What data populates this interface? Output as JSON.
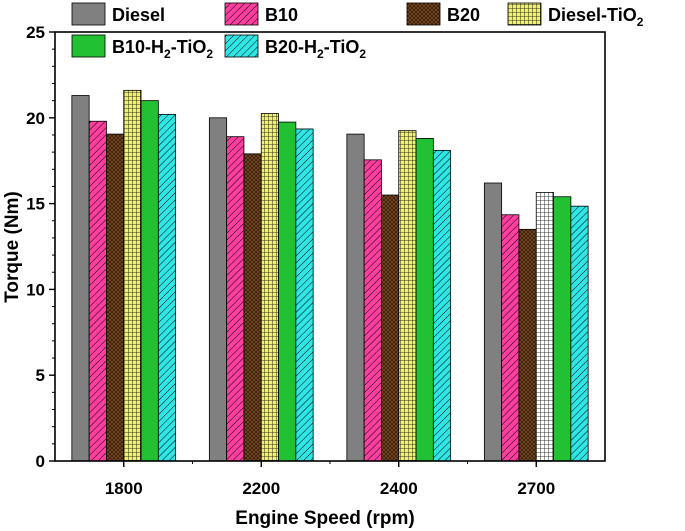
{
  "chart_data": {
    "type": "bar",
    "title": "",
    "xlabel": "Engine Speed (rpm)",
    "ylabel": "Torque (Nm)",
    "ylim": [
      0,
      25
    ],
    "yticks": [
      0,
      5,
      10,
      15,
      20,
      25
    ],
    "categories": [
      "1800",
      "2200",
      "2400",
      "2700"
    ],
    "series": [
      {
        "name": "Diesel",
        "sub": "",
        "tail": "",
        "values": [
          21.3,
          20.0,
          19.05,
          16.2
        ],
        "color": "#808080",
        "pattern": "solid"
      },
      {
        "name": "B10",
        "sub": "",
        "tail": "",
        "values": [
          19.8,
          18.9,
          17.55,
          14.35
        ],
        "color": "#ff3fa0",
        "pattern": "diag"
      },
      {
        "name": "B20",
        "sub": "",
        "tail": "",
        "values": [
          19.05,
          17.9,
          15.5,
          13.5
        ],
        "color": "#7a4a1e",
        "pattern": "cross"
      },
      {
        "name": "Diesel-TiO",
        "sub": "2",
        "tail": "",
        "values": [
          21.6,
          20.25,
          19.25,
          15.65
        ],
        "color": "#f0f070",
        "pattern": "grid"
      },
      {
        "name": "B10-H",
        "sub": "2",
        "tail": "-TiO",
        "sub2": "2",
        "values": [
          21.0,
          19.75,
          18.8,
          15.4
        ],
        "color": "#22c033",
        "pattern": "solid"
      },
      {
        "name": "B20-H",
        "sub": "2",
        "tail": "-TiO",
        "sub2": "2",
        "values": [
          20.2,
          19.35,
          18.1,
          14.85
        ],
        "color": "#2ee6e6",
        "pattern": "diag"
      }
    ],
    "legend_position": "top"
  }
}
